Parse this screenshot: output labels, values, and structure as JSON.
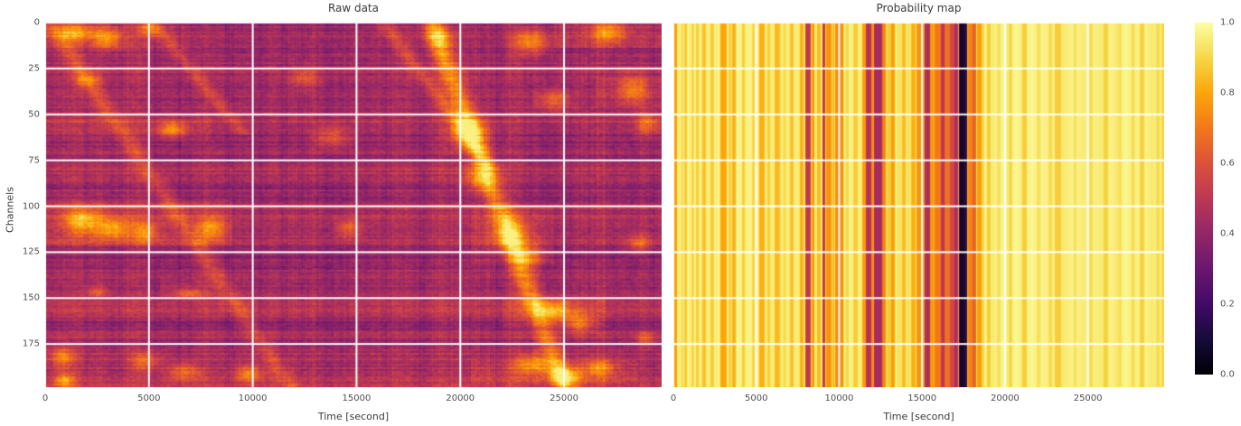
{
  "figure": {
    "background": "#ffffff",
    "title_color": "#3b3b3b",
    "tick_color": "#4f4f4f",
    "grid_color": "#ffffff"
  },
  "chart_data": [
    {
      "type": "heatmap",
      "title": "Raw data",
      "xlabel": "Time [second]",
      "ylabel": "Channels",
      "x_range": [
        0,
        29700
      ],
      "x_ticks": [
        0,
        5000,
        10000,
        15000,
        20000,
        25000
      ],
      "y_ticks": [
        0,
        25,
        50,
        75,
        100,
        125,
        150,
        175
      ],
      "channels": 199,
      "colormap": "inferno",
      "value_range": [
        0,
        1
      ],
      "grid": true,
      "appearance": {
        "seed": 1337,
        "base_level": 0.44,
        "row_smooth_amp": 0.05,
        "row_jitter_amp": 0.045,
        "col_smooth_amp": 0.04,
        "col_jitter_amp": 0.025,
        "cell_noise_amp": 0.055
      },
      "row_bands": [
        [
          96,
          122,
          0,
          9000,
          0.09
        ],
        [
          96,
          122,
          9000,
          29700,
          0.03
        ],
        [
          176,
          199,
          0,
          29700,
          0.06
        ],
        [
          168,
          175,
          0,
          29700,
          0.045
        ],
        [
          0,
          16,
          0,
          7000,
          0.06
        ],
        [
          0,
          14,
          24500,
          29700,
          0.07
        ],
        [
          52,
          62,
          0,
          8000,
          0.04
        ],
        [
          140,
          150,
          5500,
          8500,
          0.04
        ],
        [
          184,
          197,
          20500,
          28500,
          0.07
        ],
        [
          100,
          132,
          20500,
          24500,
          0.05
        ],
        [
          150,
          166,
          22000,
          27000,
          0.06
        ],
        [
          30,
          46,
          26500,
          29700,
          0.05
        ]
      ],
      "blobs": [
        [
          1400,
          5,
          900,
          5,
          0.32
        ],
        [
          3000,
          8,
          700,
          6,
          0.28
        ],
        [
          5000,
          3,
          500,
          4,
          0.24
        ],
        [
          2000,
          31,
          600,
          4,
          0.2
        ],
        [
          6100,
          58,
          700,
          4,
          0.3
        ],
        [
          1800,
          108,
          900,
          7,
          0.34
        ],
        [
          3300,
          112,
          800,
          6,
          0.3
        ],
        [
          4800,
          114,
          600,
          6,
          0.26
        ],
        [
          8000,
          112,
          700,
          6,
          0.28
        ],
        [
          2500,
          146,
          500,
          3,
          0.18
        ],
        [
          6900,
          147,
          700,
          3,
          0.2
        ],
        [
          800,
          182,
          600,
          6,
          0.26
        ],
        [
          900,
          195,
          500,
          4,
          0.3
        ],
        [
          4800,
          184,
          700,
          5,
          0.22
        ],
        [
          6700,
          190,
          800,
          5,
          0.24
        ],
        [
          9800,
          191,
          700,
          5,
          0.26
        ],
        [
          13800,
          62,
          800,
          6,
          0.22
        ],
        [
          14600,
          112,
          600,
          5,
          0.2
        ],
        [
          12500,
          30,
          700,
          5,
          0.18
        ],
        [
          19000,
          8,
          700,
          6,
          0.22
        ],
        [
          20400,
          60,
          900,
          8,
          0.34
        ],
        [
          21000,
          85,
          800,
          7,
          0.26
        ],
        [
          22400,
          115,
          900,
          8,
          0.28
        ],
        [
          23300,
          127,
          700,
          6,
          0.26
        ],
        [
          23400,
          10,
          900,
          7,
          0.3
        ],
        [
          24500,
          42,
          800,
          6,
          0.24
        ],
        [
          24500,
          157,
          900,
          6,
          0.3
        ],
        [
          25700,
          164,
          700,
          5,
          0.26
        ],
        [
          23500,
          186,
          900,
          6,
          0.28
        ],
        [
          25100,
          192,
          800,
          5,
          0.3
        ],
        [
          26700,
          188,
          700,
          5,
          0.26
        ],
        [
          27100,
          5,
          800,
          6,
          0.3
        ],
        [
          28300,
          36,
          700,
          8,
          0.26
        ],
        [
          29000,
          55,
          600,
          6,
          0.24
        ],
        [
          28600,
          120,
          600,
          5,
          0.2
        ],
        [
          28900,
          172,
          500,
          4,
          0.2
        ]
      ],
      "streaks": [
        [
          18600,
          0,
          25000,
          198,
          550,
          0.34
        ],
        [
          16300,
          0,
          21500,
          80,
          450,
          0.16
        ],
        [
          200,
          0,
          11800,
          198,
          520,
          0.16
        ],
        [
          5200,
          0,
          9500,
          60,
          400,
          0.14
        ]
      ]
    },
    {
      "type": "heatmap",
      "title": "Probability map",
      "xlabel": "Time [second]",
      "x_range": [
        0,
        29600
      ],
      "x_ticks": [
        0,
        5000,
        10000,
        15000,
        20000,
        25000
      ],
      "colormap": "inferno",
      "value_range": [
        0,
        1
      ],
      "grid": true,
      "base_value": 0.96,
      "stripes": [
        [
          0,
          200,
          0.78
        ],
        [
          430,
          560,
          0.9
        ],
        [
          640,
          820,
          0.87
        ],
        [
          1060,
          1200,
          0.9
        ],
        [
          1340,
          1480,
          0.88
        ],
        [
          1700,
          1940,
          0.86
        ],
        [
          2200,
          2400,
          0.88
        ],
        [
          2780,
          3200,
          0.8
        ],
        [
          3300,
          3450,
          0.88
        ],
        [
          3500,
          3760,
          0.82
        ],
        [
          4100,
          4300,
          0.88
        ],
        [
          4700,
          4900,
          0.9
        ],
        [
          5150,
          5480,
          0.82
        ],
        [
          5640,
          5800,
          0.88
        ],
        [
          6120,
          6420,
          0.84
        ],
        [
          6580,
          6740,
          0.9
        ],
        [
          7020,
          7220,
          0.86
        ],
        [
          7620,
          7780,
          0.82
        ],
        [
          7940,
          8260,
          0.5
        ],
        [
          8320,
          8520,
          0.78
        ],
        [
          8640,
          8860,
          0.84
        ],
        [
          8960,
          9160,
          0.48
        ],
        [
          9220,
          9500,
          0.76
        ],
        [
          9540,
          9700,
          0.84
        ],
        [
          9740,
          10220,
          0.74
        ],
        [
          10400,
          10560,
          0.9
        ],
        [
          10820,
          11080,
          0.88
        ],
        [
          11360,
          11600,
          0.78
        ],
        [
          11620,
          11880,
          0.48
        ],
        [
          11900,
          12080,
          0.76
        ],
        [
          12100,
          12540,
          0.44
        ],
        [
          12560,
          12820,
          0.72
        ],
        [
          12840,
          13080,
          0.88
        ],
        [
          13100,
          13350,
          0.78
        ],
        [
          13500,
          13720,
          0.92
        ],
        [
          13740,
          14010,
          0.84
        ],
        [
          14030,
          14270,
          0.92
        ],
        [
          14290,
          14610,
          0.82
        ],
        [
          14630,
          15150,
          0.76
        ],
        [
          15170,
          15430,
          0.45
        ],
        [
          15450,
          15710,
          0.78
        ],
        [
          15730,
          16080,
          0.7
        ],
        [
          16100,
          16350,
          0.5
        ],
        [
          16370,
          16630,
          0.68
        ],
        [
          16650,
          16900,
          0.56
        ],
        [
          16920,
          17170,
          0.45
        ],
        [
          17190,
          17440,
          0.07
        ],
        [
          17460,
          17720,
          0.12
        ],
        [
          17740,
          17990,
          0.72
        ],
        [
          18010,
          18260,
          0.64
        ],
        [
          18280,
          18540,
          0.78
        ],
        [
          18560,
          18700,
          0.9
        ],
        [
          18900,
          19100,
          0.88
        ],
        [
          19500,
          19700,
          0.92
        ],
        [
          20200,
          20400,
          0.9
        ],
        [
          21000,
          21280,
          0.88
        ],
        [
          21900,
          22100,
          0.92
        ],
        [
          22600,
          22800,
          0.91
        ],
        [
          23000,
          23350,
          0.88
        ],
        [
          24100,
          24300,
          0.92
        ],
        [
          25050,
          25250,
          0.91
        ],
        [
          25900,
          26200,
          0.89
        ],
        [
          26800,
          27000,
          0.92
        ],
        [
          27600,
          27800,
          0.91
        ],
        [
          28100,
          28400,
          0.89
        ],
        [
          29100,
          29300,
          0.91
        ],
        [
          29400,
          29600,
          0.9
        ]
      ]
    }
  ],
  "colorbar": {
    "min": 0.0,
    "max": 1.0,
    "colormap": "inferno",
    "tick_labels": [
      "1.0",
      "0.8",
      "0.6",
      "0.4",
      "0.2",
      "0.0"
    ],
    "tick_values": [
      1.0,
      0.8,
      0.6,
      0.4,
      0.2,
      0.0
    ]
  },
  "colormap_stops": {
    "inferno": [
      [
        0.0,
        "#000004"
      ],
      [
        0.1,
        "#160b39"
      ],
      [
        0.2,
        "#420a68"
      ],
      [
        0.3,
        "#6a176e"
      ],
      [
        0.4,
        "#932667"
      ],
      [
        0.5,
        "#bc3754"
      ],
      [
        0.6,
        "#dd513a"
      ],
      [
        0.7,
        "#f37819"
      ],
      [
        0.8,
        "#fca50a"
      ],
      [
        0.9,
        "#f6d746"
      ],
      [
        1.0,
        "#fcffa4"
      ]
    ]
  }
}
